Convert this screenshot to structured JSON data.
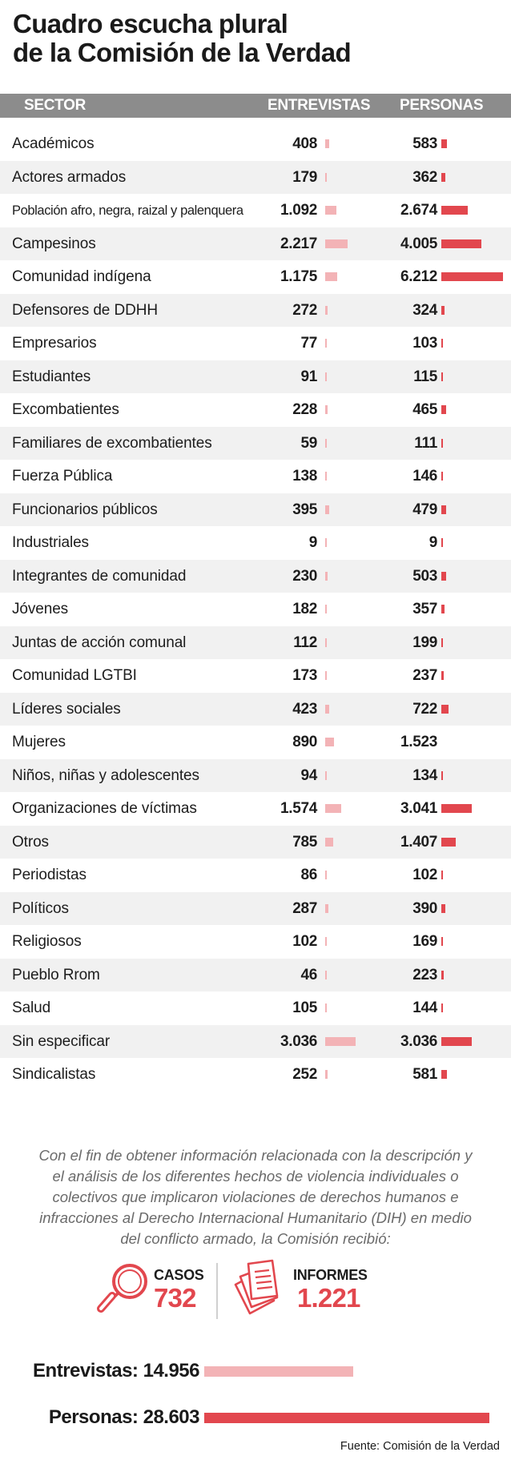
{
  "title": {
    "line1": "Cuadro escucha plural",
    "line2": "de la Comisión de la Verdad"
  },
  "colors": {
    "entrevistas_bar": "#f3b3b6",
    "personas_bar": "#e2474e",
    "header_bg": "#8c8c8c",
    "alt_row_bg": "#f1f1f1",
    "accent": "#e2474e"
  },
  "chart_data": {
    "type": "table",
    "columns": [
      "SECTOR",
      "ENTREVISTAS",
      "PERSONAS"
    ],
    "scale_max": 28603,
    "rows": [
      {
        "sector": "Académicos",
        "entrevistas": 408,
        "entrevistas_label": "408",
        "personas": 583,
        "personas_label": "583"
      },
      {
        "sector": "Actores armados",
        "entrevistas": 179,
        "entrevistas_label": "179",
        "personas": 362,
        "personas_label": "362"
      },
      {
        "sector": "Población afro, negra, raizal y palenquera",
        "entrevistas": 1092,
        "entrevistas_label": "1.092",
        "personas": 2674,
        "personas_label": "2.674"
      },
      {
        "sector": "Campesinos",
        "entrevistas": 2217,
        "entrevistas_label": "2.217",
        "personas": 4005,
        "personas_label": "4.005"
      },
      {
        "sector": "Comunidad indígena",
        "entrevistas": 1175,
        "entrevistas_label": "1.175",
        "personas": 6212,
        "personas_label": "6.212"
      },
      {
        "sector": "Defensores de DDHH",
        "entrevistas": 272,
        "entrevistas_label": "272",
        "personas": 324,
        "personas_label": "324"
      },
      {
        "sector": "Empresarios",
        "entrevistas": 77,
        "entrevistas_label": "77",
        "personas": 103,
        "personas_label": "103"
      },
      {
        "sector": "Estudiantes",
        "entrevistas": 91,
        "entrevistas_label": "91",
        "personas": 115,
        "personas_label": "115"
      },
      {
        "sector": "Excombatientes",
        "entrevistas": 228,
        "entrevistas_label": "228",
        "personas": 465,
        "personas_label": "465"
      },
      {
        "sector": "Familiares de excombatientes",
        "entrevistas": 59,
        "entrevistas_label": "59",
        "personas": 111,
        "personas_label": "111"
      },
      {
        "sector": "Fuerza Pública",
        "entrevistas": 138,
        "entrevistas_label": "138",
        "personas": 146,
        "personas_label": "146"
      },
      {
        "sector": "Funcionarios públicos",
        "entrevistas": 395,
        "entrevistas_label": "395",
        "personas": 479,
        "personas_label": "479"
      },
      {
        "sector": "Industriales",
        "entrevistas": 9,
        "entrevistas_label": "9",
        "personas": 9,
        "personas_label": "9"
      },
      {
        "sector": "Integrantes de comunidad",
        "entrevistas": 230,
        "entrevistas_label": "230",
        "personas": 503,
        "personas_label": "503"
      },
      {
        "sector": "Jóvenes",
        "entrevistas": 182,
        "entrevistas_label": "182",
        "personas": 357,
        "personas_label": "357"
      },
      {
        "sector": "Juntas de acción comunal",
        "entrevistas": 112,
        "entrevistas_label": "112",
        "personas": 199,
        "personas_label": "199"
      },
      {
        "sector": "Comunidad LGTBI",
        "entrevistas": 173,
        "entrevistas_label": "173",
        "personas": 237,
        "personas_label": "237"
      },
      {
        "sector": "Líderes sociales",
        "entrevistas": 423,
        "entrevistas_label": "423",
        "personas": 722,
        "personas_label": "722"
      },
      {
        "sector": "Mujeres",
        "entrevistas": 890,
        "entrevistas_label": "890",
        "personas": 1523,
        "personas_label": "1.523",
        "personas_bar_shown": false
      },
      {
        "sector": "Niños, niñas y adolescentes",
        "entrevistas": 94,
        "entrevistas_label": "94",
        "personas": 134,
        "personas_label": "134"
      },
      {
        "sector": "Organizaciones de víctimas",
        "entrevistas": 1574,
        "entrevistas_label": "1.574",
        "personas": 3041,
        "personas_label": "3.041"
      },
      {
        "sector": "Otros",
        "entrevistas": 785,
        "entrevistas_label": "785",
        "personas": 1407,
        "personas_label": "1.407"
      },
      {
        "sector": "Periodistas",
        "entrevistas": 86,
        "entrevistas_label": "86",
        "personas": 102,
        "personas_label": "102"
      },
      {
        "sector": "Políticos",
        "entrevistas": 287,
        "entrevistas_label": "287",
        "personas": 390,
        "personas_label": "390"
      },
      {
        "sector": "Religiosos",
        "entrevistas": 102,
        "entrevistas_label": "102",
        "personas": 169,
        "personas_label": "169"
      },
      {
        "sector": "Pueblo Rrom",
        "entrevistas": 46,
        "entrevistas_label": "46",
        "personas": 223,
        "personas_label": "223"
      },
      {
        "sector": "Salud",
        "entrevistas": 105,
        "entrevistas_label": "105",
        "personas": 144,
        "personas_label": "144"
      },
      {
        "sector": "Sin especificar",
        "entrevistas": 3036,
        "entrevistas_label": "3.036",
        "personas": 3036,
        "personas_label": "3.036"
      },
      {
        "sector": "Sindicalistas",
        "entrevistas": 252,
        "entrevistas_label": "252",
        "personas": 581,
        "personas_label": "581"
      }
    ]
  },
  "note": "Con el fin de obtener información relacionada con la descripción y el análisis de los diferentes hechos de violencia individuales o colectivos que implicaron violaciones de derechos humanos e infracciones al Derecho Internacional Humanitario (DIH) en medio del conflicto armado, la Comisión recibió:",
  "stats": {
    "casos": {
      "label": "CASOS",
      "value": "732",
      "icon": "magnifier-icon"
    },
    "informes": {
      "label": "INFORMES",
      "value": "1.221",
      "icon": "documents-icon"
    }
  },
  "totals": {
    "entrevistas": {
      "label": "Entrevistas:",
      "value": "14.956",
      "number": 14956
    },
    "personas": {
      "label": "Personas:",
      "value": "28.603",
      "number": 28603
    }
  },
  "source": "Fuente: Comisión de la Verdad"
}
